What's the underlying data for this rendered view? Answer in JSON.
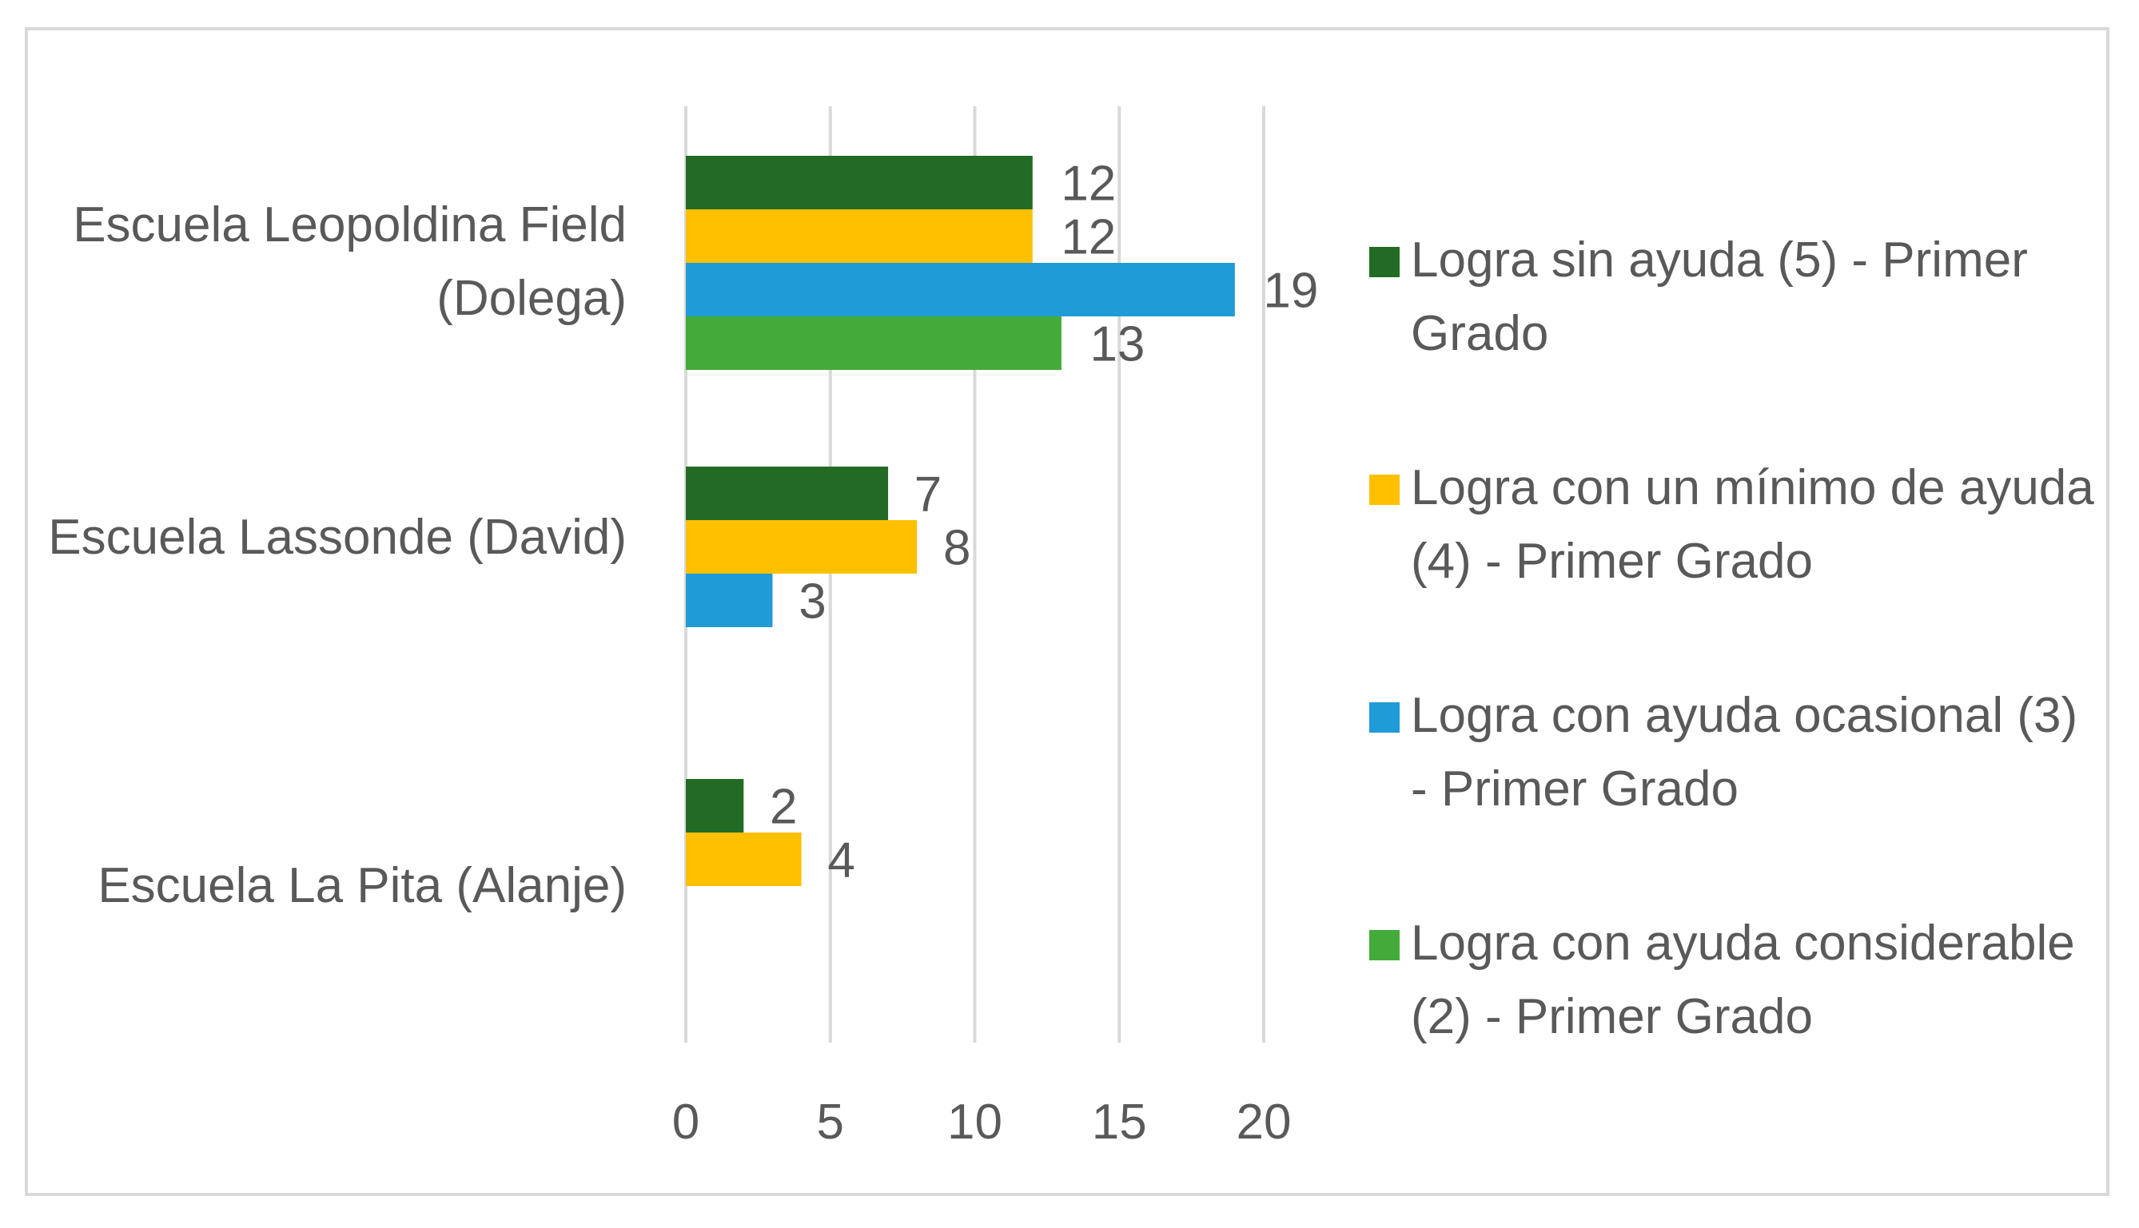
{
  "chart_data": {
    "type": "bar",
    "orientation": "horizontal",
    "categories": [
      "Escuela Leopoldina Field (Dolega)",
      "Escuela Lassonde (David)",
      "Escuela La Pita (Alanje)"
    ],
    "series": [
      {
        "name": "Logra sin ayuda (5) - Primer Grado",
        "color": "#236b24",
        "values": [
          12,
          7,
          2
        ]
      },
      {
        "name": "Logra con un mínimo de ayuda (4) - Primer Grado",
        "color": "#ffc000",
        "values": [
          12,
          8,
          4
        ]
      },
      {
        "name": "Logra con ayuda ocasional (3) - Primer Grado",
        "color": "#1f9bd7",
        "values": [
          19,
          3,
          null
        ]
      },
      {
        "name": "Logra con ayuda considerable (2) - Primer Grado",
        "color": "#43ab3a",
        "values": [
          13,
          null,
          null
        ]
      }
    ],
    "x_ticks": [
      0,
      5,
      10,
      15,
      20
    ],
    "xlim": [
      0,
      20
    ],
    "title": "",
    "xlabel": "",
    "ylabel": "",
    "grid": true,
    "legend": "right"
  }
}
